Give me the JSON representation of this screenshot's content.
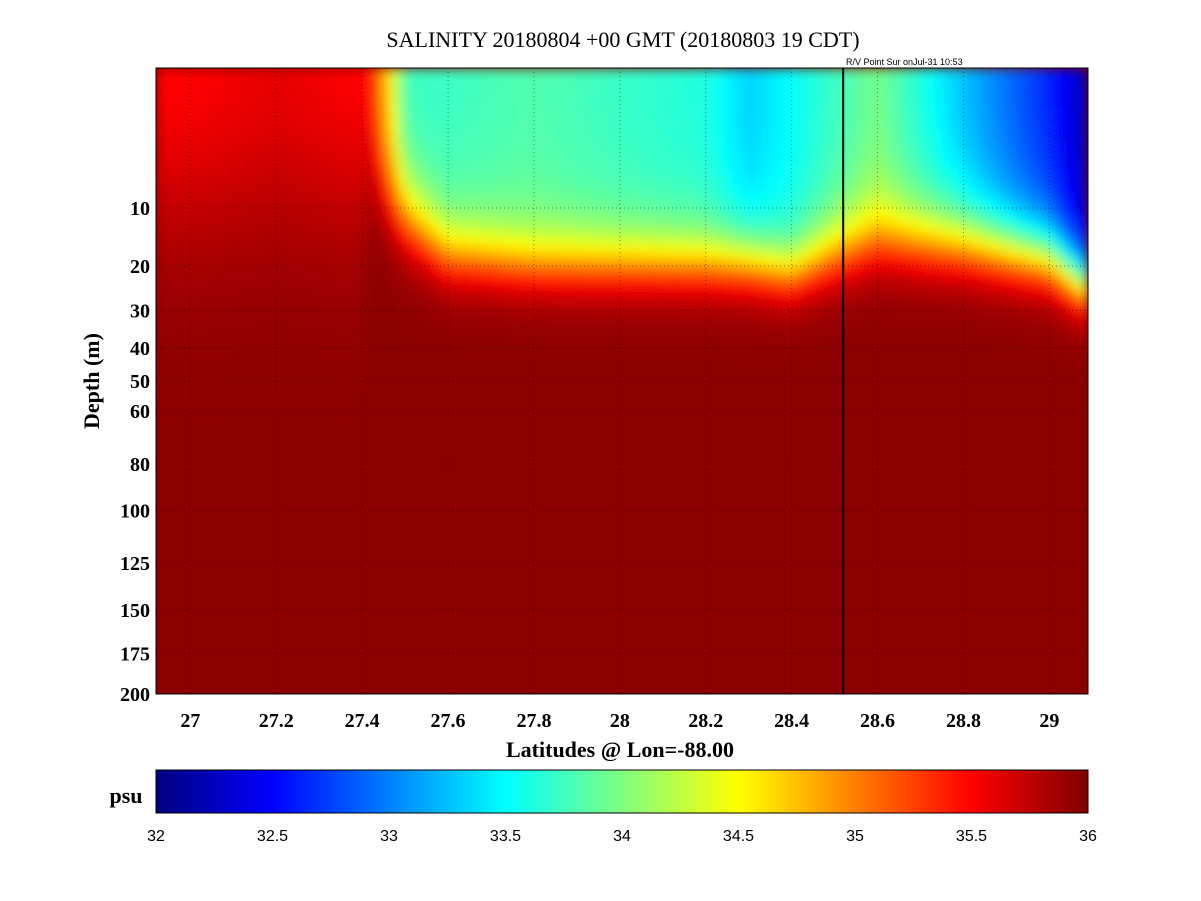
{
  "chart_data": {
    "type": "heatmap",
    "title": "SALINITY 20180804 +00 GMT (20180803 19 CDT)",
    "annotation": "R/V Point Sur onJul-31 10:53",
    "xlabel": "Latitudes @ Lon=-88.00",
    "ylabel": "Depth (m)",
    "xlim": [
      26.92,
      29.09
    ],
    "ylim": [
      0,
      200
    ],
    "y_scale": "sqrt",
    "y_reversed": true,
    "x_ticks": [
      27,
      27.2,
      27.4,
      27.6,
      27.8,
      28,
      28.2,
      28.4,
      28.6,
      28.8,
      29
    ],
    "y_ticks": [
      10,
      20,
      30,
      40,
      50,
      60,
      80,
      100,
      125,
      150,
      175,
      200
    ],
    "grid": true,
    "colorbar": {
      "label": "psu",
      "range": [
        32,
        36
      ],
      "ticks": [
        32,
        32.5,
        33,
        33.5,
        34,
        34.5,
        35,
        35.5,
        36
      ],
      "colormap": "jet"
    },
    "marker_line_x": 28.52,
    "background_value": 35.95,
    "x": [
      26.92,
      27.0,
      27.2,
      27.4,
      27.5,
      27.6,
      27.8,
      28.0,
      28.2,
      28.3,
      28.4,
      28.5,
      28.6,
      28.8,
      29.0,
      29.09
    ],
    "surface_salinity": [
      35.5,
      35.5,
      35.6,
      35.5,
      33.6,
      33.7,
      33.8,
      33.7,
      33.6,
      33.3,
      33.5,
      33.7,
      33.9,
      33.2,
      32.6,
      32.2
    ],
    "mixed_layer_depth": [
      0,
      0,
      0,
      0,
      10,
      17,
      19,
      19,
      19,
      19,
      21,
      17,
      14,
      15,
      18,
      24
    ]
  }
}
